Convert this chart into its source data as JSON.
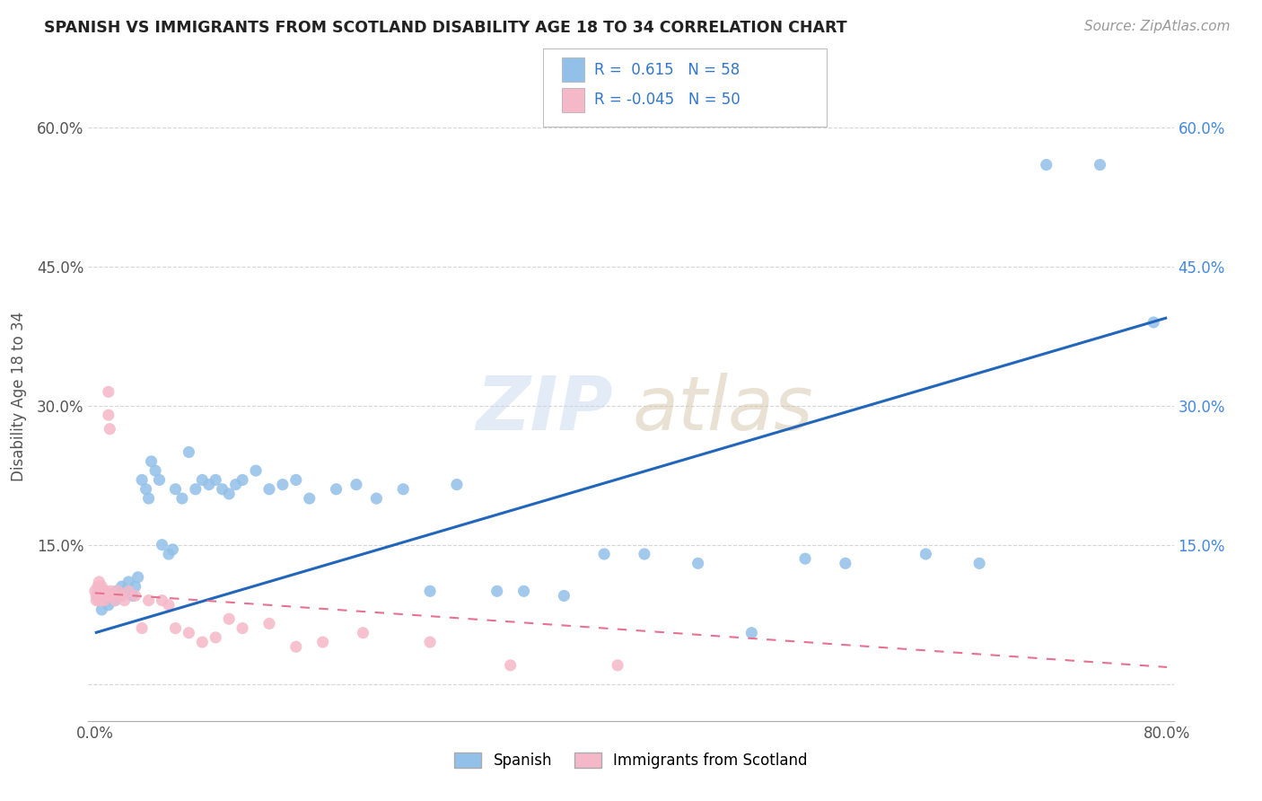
{
  "title": "SPANISH VS IMMIGRANTS FROM SCOTLAND DISABILITY AGE 18 TO 34 CORRELATION CHART",
  "source": "Source: ZipAtlas.com",
  "ylabel": "Disability Age 18 to 34",
  "xlim": [
    -0.005,
    0.805
  ],
  "ylim": [
    -0.04,
    0.66
  ],
  "xtick_positions": [
    0.0,
    0.1,
    0.2,
    0.3,
    0.4,
    0.5,
    0.6,
    0.7,
    0.8
  ],
  "xticklabels": [
    "0.0%",
    "",
    "",
    "",
    "",
    "",
    "",
    "",
    "80.0%"
  ],
  "ytick_positions": [
    0.0,
    0.15,
    0.3,
    0.45,
    0.6
  ],
  "yticklabels_left": [
    "",
    "15.0%",
    "30.0%",
    "45.0%",
    "60.0%"
  ],
  "yticklabels_right": [
    "",
    "15.0%",
    "30.0%",
    "45.0%",
    "60.0%"
  ],
  "legend_r_spanish": " 0.615",
  "legend_n_spanish": "58",
  "legend_r_scots": "-0.045",
  "legend_n_scots": "50",
  "spanish_color": "#92c0e8",
  "scots_color": "#f5b8c8",
  "spanish_line_color": "#2266bb",
  "scots_line_color": "#e87090",
  "background_color": "#ffffff",
  "grid_color": "#cccccc",
  "spanish_x": [
    0.005,
    0.008,
    0.01,
    0.012,
    0.015,
    0.016,
    0.018,
    0.02,
    0.022,
    0.025,
    0.028,
    0.03,
    0.032,
    0.035,
    0.038,
    0.04,
    0.042,
    0.045,
    0.048,
    0.05,
    0.055,
    0.058,
    0.06,
    0.065,
    0.07,
    0.075,
    0.08,
    0.085,
    0.09,
    0.095,
    0.1,
    0.105,
    0.11,
    0.12,
    0.13,
    0.14,
    0.15,
    0.16,
    0.18,
    0.195,
    0.21,
    0.23,
    0.25,
    0.27,
    0.3,
    0.32,
    0.35,
    0.38,
    0.41,
    0.45,
    0.49,
    0.53,
    0.56,
    0.62,
    0.66,
    0.71,
    0.75,
    0.79
  ],
  "spanish_y": [
    0.08,
    0.09,
    0.085,
    0.095,
    0.09,
    0.1,
    0.095,
    0.105,
    0.1,
    0.11,
    0.095,
    0.105,
    0.115,
    0.22,
    0.21,
    0.2,
    0.24,
    0.23,
    0.22,
    0.15,
    0.14,
    0.145,
    0.21,
    0.2,
    0.25,
    0.21,
    0.22,
    0.215,
    0.22,
    0.21,
    0.205,
    0.215,
    0.22,
    0.23,
    0.21,
    0.215,
    0.22,
    0.2,
    0.21,
    0.215,
    0.2,
    0.21,
    0.1,
    0.215,
    0.1,
    0.1,
    0.095,
    0.14,
    0.14,
    0.13,
    0.055,
    0.135,
    0.13,
    0.14,
    0.13,
    0.56,
    0.56,
    0.39
  ],
  "scots_x": [
    0.0,
    0.001,
    0.001,
    0.002,
    0.002,
    0.002,
    0.003,
    0.003,
    0.003,
    0.004,
    0.004,
    0.004,
    0.005,
    0.005,
    0.005,
    0.006,
    0.006,
    0.007,
    0.007,
    0.008,
    0.008,
    0.009,
    0.01,
    0.01,
    0.011,
    0.012,
    0.013,
    0.015,
    0.017,
    0.02,
    0.022,
    0.025,
    0.03,
    0.035,
    0.04,
    0.05,
    0.055,
    0.06,
    0.07,
    0.08,
    0.09,
    0.1,
    0.11,
    0.13,
    0.15,
    0.17,
    0.2,
    0.25,
    0.31,
    0.39
  ],
  "scots_y": [
    0.1,
    0.095,
    0.09,
    0.105,
    0.1,
    0.095,
    0.11,
    0.105,
    0.09,
    0.095,
    0.1,
    0.09,
    0.105,
    0.1,
    0.095,
    0.1,
    0.095,
    0.1,
    0.09,
    0.095,
    0.1,
    0.095,
    0.315,
    0.29,
    0.275,
    0.1,
    0.095,
    0.09,
    0.1,
    0.095,
    0.09,
    0.1,
    0.095,
    0.06,
    0.09,
    0.09,
    0.085,
    0.06,
    0.055,
    0.045,
    0.05,
    0.07,
    0.06,
    0.065,
    0.04,
    0.045,
    0.055,
    0.045,
    0.02,
    0.02
  ],
  "spanish_line_x0": 0.0,
  "spanish_line_y0": 0.055,
  "spanish_line_x1": 0.8,
  "spanish_line_y1": 0.395,
  "scots_line_x0": 0.0,
  "scots_line_y0": 0.098,
  "scots_line_x1": 0.8,
  "scots_line_y1": 0.018
}
